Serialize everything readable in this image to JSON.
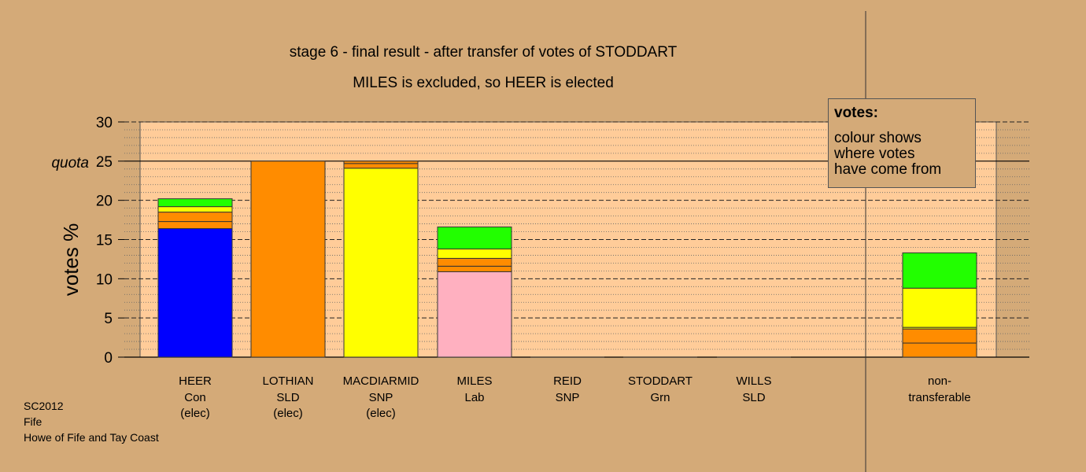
{
  "chart_data": {
    "type": "bar",
    "title": "stage 6 - final result - after transfer of votes of STODDART",
    "subtitle": "MILES is excluded, so HEER is elected",
    "ylabel": "votes %",
    "ylim": [
      0,
      30
    ],
    "yticks": [
      "0",
      "5",
      "10",
      "15",
      "20",
      "25",
      "30"
    ],
    "quota_label": "quota",
    "quota": 25,
    "categories": [
      {
        "name": "HEER",
        "party": "Con",
        "status": "(elec)"
      },
      {
        "name": "LOTHIAN",
        "party": "SLD",
        "status": "(elec)"
      },
      {
        "name": "MACDIARMID",
        "party": "SNP",
        "status": "(elec)"
      },
      {
        "name": "MILES",
        "party": "Lab",
        "status": ""
      },
      {
        "name": "REID",
        "party": "SNP",
        "status": ""
      },
      {
        "name": "STODDART",
        "party": "Grn",
        "status": ""
      },
      {
        "name": "WILLS",
        "party": "SLD",
        "status": ""
      },
      {
        "name": "non-",
        "party": "transferable",
        "status": ""
      }
    ],
    "bars": [
      [
        {
          "value": 16.4,
          "color": "#0000ff"
        },
        {
          "value": 0.9,
          "color": "#ff8c00"
        },
        {
          "value": 1.2,
          "color": "#ff8c00"
        },
        {
          "value": 0.7,
          "color": "#ffff00"
        },
        {
          "value": 1.0,
          "color": "#22ff00"
        }
      ],
      [
        {
          "value": 25.0,
          "color": "#ff8c00"
        }
      ],
      [
        {
          "value": 24.1,
          "color": "#ffff00"
        },
        {
          "value": 0.6,
          "color": "#ff8c00"
        },
        {
          "value": 0.3,
          "color": "#ff8c00"
        }
      ],
      [
        {
          "value": 10.9,
          "color": "#ffb0c0"
        },
        {
          "value": 0.7,
          "color": "#ff8c00"
        },
        {
          "value": 1.0,
          "color": "#ff8c00"
        },
        {
          "value": 1.2,
          "color": "#ffff00"
        },
        {
          "value": 2.8,
          "color": "#22ff00"
        }
      ],
      [],
      [],
      [],
      [
        {
          "value": 1.8,
          "color": "#ff8c00"
        },
        {
          "value": 1.8,
          "color": "#ff8c00"
        },
        {
          "value": 0.2,
          "color": "#ffff00"
        },
        {
          "value": 5.0,
          "color": "#ffff00"
        },
        {
          "value": 4.5,
          "color": "#22ff00"
        }
      ]
    ],
    "grid": true,
    "legend": "top-right"
  },
  "legend": {
    "title": "votes:",
    "lines": [
      "colour shows",
      "where votes",
      "have come from"
    ]
  },
  "footer": {
    "line1": "SC2012",
    "line2": "Fife",
    "line3": "Howe of Fife and Tay Coast"
  }
}
